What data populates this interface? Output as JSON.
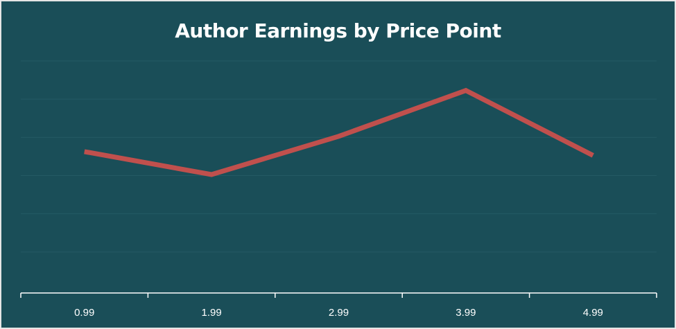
{
  "chart_data": {
    "type": "line",
    "title": "Author Earnings by Price Point",
    "xlabel": "",
    "ylabel": "",
    "categories": [
      "0.99",
      "1.99",
      "2.99",
      "3.99",
      "4.99"
    ],
    "series": [
      {
        "values": [
          3.7,
          3.1,
          4.1,
          5.3,
          3.6
        ]
      }
    ],
    "ylim": [
      0,
      6
    ],
    "grid": true,
    "legend": "none",
    "colors": {
      "background": "#1a4e58",
      "line": "#c0504d",
      "grid": "#245a64",
      "axis": "#ffffff",
      "text": "#ffffff"
    }
  }
}
